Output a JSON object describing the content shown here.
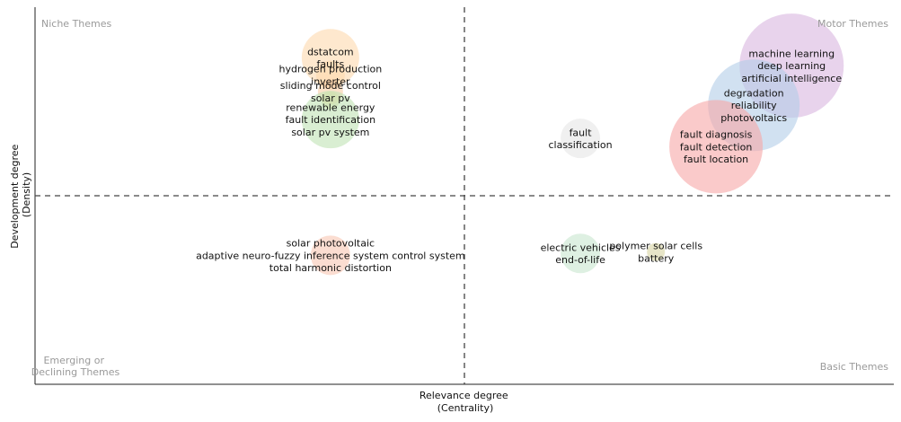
{
  "chart_data": {
    "type": "scatter",
    "title": "",
    "xlabel_lines": [
      "Relevance degree",
      "(Centrality)"
    ],
    "ylabel_lines": [
      "Development degree",
      "(Density)"
    ],
    "quadrants": {
      "top_left": [
        "Niche Themes"
      ],
      "top_right": [
        "Motor Themes"
      ],
      "bottom_left": [
        "Emerging or",
        "Declining Themes"
      ],
      "bottom_right": [
        "Basic Themes"
      ]
    },
    "grid": false,
    "axis_ticks": false,
    "xlim": [
      0,
      100
    ],
    "ylim": [
      0,
      100
    ],
    "divider": {
      "x": 50,
      "y": 50
    },
    "clusters": [
      {
        "color": "#fdd8ad",
        "size": 32,
        "x": 34.4,
        "y": 86.6,
        "labels": [
          "dstatcom",
          "faults"
        ]
      },
      {
        "color": "#fdd8ad",
        "size": 16,
        "x": 34.4,
        "y": 82.0,
        "labels": [
          "hydrogen production",
          "inverter"
        ]
      },
      {
        "color": "#f8cfa6",
        "size": 14,
        "x": 34.4,
        "y": 77.6,
        "labels": [
          "sliding mode control",
          "solar pv"
        ]
      },
      {
        "color": "#e8e1a6",
        "size": 10,
        "x": 34.4,
        "y": 75.3,
        "labels": []
      },
      {
        "color": "#bfe3b4",
        "size": 32,
        "x": 34.4,
        "y": 70.2,
        "labels": [
          "renewable energy",
          "fault identification",
          "solar pv system"
        ]
      },
      {
        "color": "#e6e6e6",
        "size": 22,
        "x": 63.5,
        "y": 65.2,
        "labels": [
          "fault",
          "classification"
        ]
      },
      {
        "color": "#d9b6e0",
        "size": 58,
        "x": 88.1,
        "y": 84.5,
        "labels": [
          "machine learning",
          "deep learning",
          "artificial intelligence"
        ]
      },
      {
        "color": "#b3cde8",
        "size": 51,
        "x": 83.7,
        "y": 74.0,
        "labels": [
          "degradation",
          "reliability",
          "photovoltaics"
        ]
      },
      {
        "color": "#f6a6a6",
        "size": 52,
        "x": 79.3,
        "y": 63.0,
        "labels": [
          "fault diagnosis",
          "fault detection",
          "fault location"
        ]
      },
      {
        "color": "#f9c6b2",
        "size": 22,
        "x": 34.4,
        "y": 34.2,
        "labels": [
          "solar photovoltaic",
          "adaptive neuro-fuzzy inference system control system",
          "total harmonic distortion"
        ]
      },
      {
        "color": "#c8e6cf",
        "size": 22,
        "x": 63.5,
        "y": 34.7,
        "labels": [
          "electric vehicles",
          "end-of-life"
        ]
      },
      {
        "color": "#d7d3a2",
        "size": 10,
        "x": 72.3,
        "y": 35.1,
        "labels": [
          "polymer solar cells",
          "battery"
        ]
      }
    ]
  }
}
